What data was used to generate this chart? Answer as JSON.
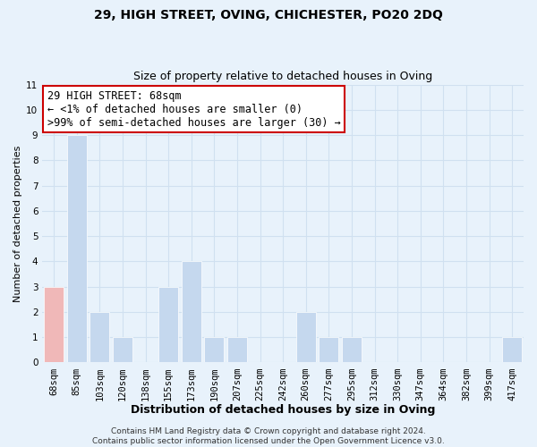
{
  "title": "29, HIGH STREET, OVING, CHICHESTER, PO20 2DQ",
  "subtitle": "Size of property relative to detached houses in Oving",
  "xlabel": "Distribution of detached houses by size in Oving",
  "ylabel": "Number of detached properties",
  "footer_lines": [
    "Contains HM Land Registry data © Crown copyright and database right 2024.",
    "Contains public sector information licensed under the Open Government Licence v3.0."
  ],
  "categories": [
    "68sqm",
    "85sqm",
    "103sqm",
    "120sqm",
    "138sqm",
    "155sqm",
    "173sqm",
    "190sqm",
    "207sqm",
    "225sqm",
    "242sqm",
    "260sqm",
    "277sqm",
    "295sqm",
    "312sqm",
    "330sqm",
    "347sqm",
    "364sqm",
    "382sqm",
    "399sqm",
    "417sqm"
  ],
  "values": [
    3,
    9,
    2,
    1,
    0,
    3,
    4,
    1,
    1,
    0,
    0,
    2,
    1,
    1,
    0,
    0,
    0,
    0,
    0,
    0,
    1
  ],
  "highlight_index": 0,
  "bar_color_normal": "#c5d8ee",
  "bar_color_highlight": "#f0b8b8",
  "bar_edge_color": "#ffffff",
  "ylim": [
    0,
    11
  ],
  "yticks": [
    0,
    1,
    2,
    3,
    4,
    5,
    6,
    7,
    8,
    9,
    10,
    11
  ],
  "annotation_box_text": "29 HIGH STREET: 68sqm\n← <1% of detached houses are smaller (0)\n>99% of semi-detached houses are larger (30) →",
  "annotation_box_edge_color": "#cc0000",
  "annotation_box_face_color": "#ffffff",
  "grid_color": "#d0e0f0",
  "background_color": "#e8f2fb",
  "title_fontsize": 10,
  "subtitle_fontsize": 9,
  "xlabel_fontsize": 9,
  "ylabel_fontsize": 8,
  "tick_fontsize": 7.5,
  "annotation_fontsize": 8.5,
  "footer_fontsize": 6.5
}
